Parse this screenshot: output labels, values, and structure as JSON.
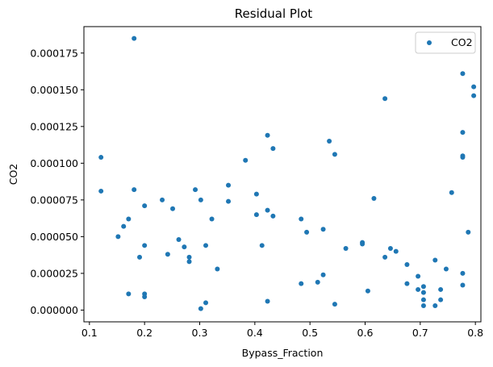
{
  "chart_data": {
    "type": "scatter",
    "title": "Residual Plot",
    "xlabel": "Bypass_Fraction",
    "ylabel": "CO2",
    "xlim": [
      0.09,
      0.81
    ],
    "ylim": [
      -8e-06,
      0.000193
    ],
    "xticks": [
      0.1,
      0.2,
      0.3,
      0.4,
      0.5,
      0.6,
      0.7,
      0.8
    ],
    "xtick_labels": [
      "0.1",
      "0.2",
      "0.3",
      "0.4",
      "0.5",
      "0.6",
      "0.7",
      "0.8"
    ],
    "yticks": [
      0,
      2.5e-05,
      5e-05,
      7.5e-05,
      0.0001,
      0.000125,
      0.00015,
      0.000175
    ],
    "ytick_labels": [
      "0.000000",
      "0.000025",
      "0.000050",
      "0.000075",
      "0.000100",
      "0.000125",
      "0.000150",
      "0.000175"
    ],
    "legend": {
      "entries": [
        "CO2"
      ],
      "placement": "upper-right"
    },
    "grid": false,
    "color": "#1f77b4",
    "series": [
      {
        "name": "CO2",
        "points": [
          [
            0.121,
            0.000104
          ],
          [
            0.121,
            8.1e-05
          ],
          [
            0.152,
            5e-05
          ],
          [
            0.162,
            5.7e-05
          ],
          [
            0.171,
            6.2e-05
          ],
          [
            0.171,
            1.1e-05
          ],
          [
            0.181,
            0.000185
          ],
          [
            0.181,
            8.2e-05
          ],
          [
            0.191,
            3.6e-05
          ],
          [
            0.2,
            7.1e-05
          ],
          [
            0.2,
            4.4e-05
          ],
          [
            0.2,
            1.1e-05
          ],
          [
            0.2,
            9e-06
          ],
          [
            0.232,
            7.5e-05
          ],
          [
            0.242,
            3.8e-05
          ],
          [
            0.251,
            6.9e-05
          ],
          [
            0.262,
            4.8e-05
          ],
          [
            0.272,
            4.3e-05
          ],
          [
            0.281,
            3.6e-05
          ],
          [
            0.281,
            3.3e-05
          ],
          [
            0.292,
            8.2e-05
          ],
          [
            0.302,
            7.5e-05
          ],
          [
            0.302,
            1e-06
          ],
          [
            0.311,
            4.4e-05
          ],
          [
            0.311,
            5e-06
          ],
          [
            0.322,
            6.2e-05
          ],
          [
            0.332,
            2.8e-05
          ],
          [
            0.352,
            8.5e-05
          ],
          [
            0.352,
            7.4e-05
          ],
          [
            0.383,
            0.000102
          ],
          [
            0.403,
            7.9e-05
          ],
          [
            0.403,
            6.5e-05
          ],
          [
            0.413,
            4.4e-05
          ],
          [
            0.423,
            0.000119
          ],
          [
            0.423,
            6.8e-05
          ],
          [
            0.423,
            6e-06
          ],
          [
            0.433,
            0.00011
          ],
          [
            0.433,
            6.4e-05
          ],
          [
            0.484,
            6.2e-05
          ],
          [
            0.484,
            1.8e-05
          ],
          [
            0.494,
            5.3e-05
          ],
          [
            0.514,
            1.9e-05
          ],
          [
            0.524,
            5.5e-05
          ],
          [
            0.524,
            2.4e-05
          ],
          [
            0.535,
            0.000115
          ],
          [
            0.545,
            0.000106
          ],
          [
            0.545,
            4e-06
          ],
          [
            0.565,
            4.2e-05
          ],
          [
            0.595,
            4.6e-05
          ],
          [
            0.595,
            4.5e-05
          ],
          [
            0.605,
            1.3e-05
          ],
          [
            0.616,
            7.6e-05
          ],
          [
            0.636,
            0.000144
          ],
          [
            0.636,
            3.6e-05
          ],
          [
            0.646,
            4.2e-05
          ],
          [
            0.656,
            4e-05
          ],
          [
            0.676,
            3.1e-05
          ],
          [
            0.676,
            1.8e-05
          ],
          [
            0.696,
            2.3e-05
          ],
          [
            0.696,
            1.4e-05
          ],
          [
            0.706,
            1.6e-05
          ],
          [
            0.706,
            1.2e-05
          ],
          [
            0.706,
            7e-06
          ],
          [
            0.706,
            3e-06
          ],
          [
            0.727,
            3.4e-05
          ],
          [
            0.727,
            3e-06
          ],
          [
            0.737,
            1.4e-05
          ],
          [
            0.737,
            7e-06
          ],
          [
            0.747,
            2.8e-05
          ],
          [
            0.757,
            8e-05
          ],
          [
            0.777,
            0.000161
          ],
          [
            0.777,
            0.000121
          ],
          [
            0.777,
            0.000105
          ],
          [
            0.777,
            0.000104
          ],
          [
            0.777,
            2.5e-05
          ],
          [
            0.777,
            1.7e-05
          ],
          [
            0.787,
            5.3e-05
          ],
          [
            0.797,
            0.000152
          ],
          [
            0.797,
            0.000146
          ]
        ]
      }
    ]
  }
}
